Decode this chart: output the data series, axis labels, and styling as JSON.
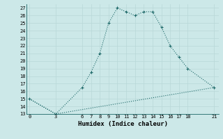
{
  "xlabel": "Humidex (Indice chaleur)",
  "background_color": "#cce8e8",
  "plot_bg_color": "#cce8e8",
  "grid_color": "#b8d8d8",
  "line_color": "#1a6666",
  "ylim": [
    13,
    27.5
  ],
  "xlim": [
    -0.3,
    21.5
  ],
  "yticks": [
    13,
    14,
    15,
    16,
    17,
    18,
    19,
    20,
    21,
    22,
    23,
    24,
    25,
    26,
    27
  ],
  "xticks": [
    0,
    3,
    6,
    7,
    8,
    9,
    10,
    11,
    12,
    13,
    14,
    15,
    16,
    17,
    18,
    21
  ],
  "curve_x": [
    0,
    3,
    6,
    7,
    8,
    9,
    10,
    11,
    12,
    13,
    14,
    15,
    16,
    17,
    18,
    21
  ],
  "curve_y": [
    15.0,
    13.0,
    16.5,
    18.5,
    21.0,
    25.0,
    27.0,
    26.5,
    26.0,
    26.5,
    26.5,
    24.5,
    22.0,
    20.5,
    19.0,
    16.5
  ],
  "line_x": [
    0,
    3,
    21
  ],
  "line_y": [
    15.0,
    13.0,
    16.5
  ]
}
